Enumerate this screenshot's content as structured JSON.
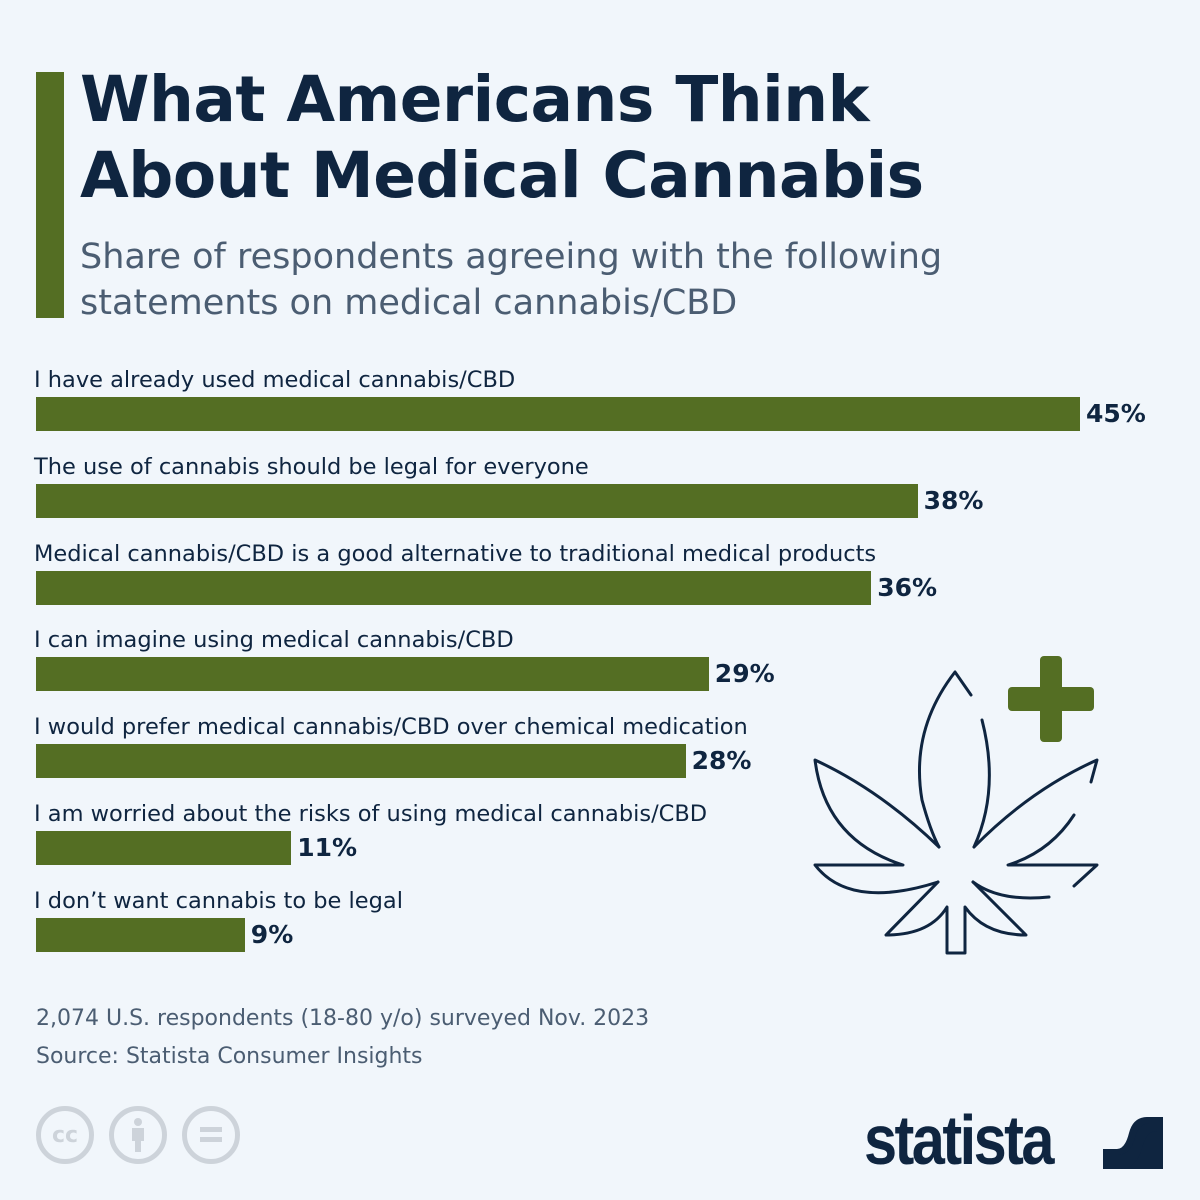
{
  "header": {
    "title_line1": "What Americans Think",
    "title_line2": "About Medical Cannabis",
    "subtitle": "Share of respondents agreeing with the following statements on medical cannabis/CBD"
  },
  "colors": {
    "bar": "#546e23",
    "accent": "#546e23",
    "text": "#0f2540",
    "background": "#f1f6fb"
  },
  "chart_data": {
    "type": "bar",
    "orientation": "horizontal",
    "categories": [
      "I have already used medical cannabis/CBD",
      "The use of cannabis should be legal for everyone",
      "Medical cannabis/CBD is a good alternative to traditional medical products",
      "I can imagine using medical cannabis/CBD",
      "I would prefer medical cannabis/CBD over chemical medication",
      "I am worried about the risks of using medical cannabis/CBD",
      "I don’t want cannabis to be legal"
    ],
    "values": [
      45,
      38,
      36,
      29,
      28,
      11,
      9
    ],
    "value_labels": [
      "45%",
      "38%",
      "36%",
      "29%",
      "28%",
      "11%",
      "9%"
    ],
    "unit": "%",
    "grid": false
  },
  "footer": {
    "note": "2,074 U.S. respondents (18-80 y/o) surveyed Nov. 2023",
    "source": "Source: Statista Consumer Insights",
    "license_icons": [
      "cc-icon",
      "attribution-icon",
      "no-derivatives-icon"
    ],
    "logo": "statista"
  },
  "icons": [
    "cannabis-leaf-icon",
    "medical-plus-icon"
  ]
}
